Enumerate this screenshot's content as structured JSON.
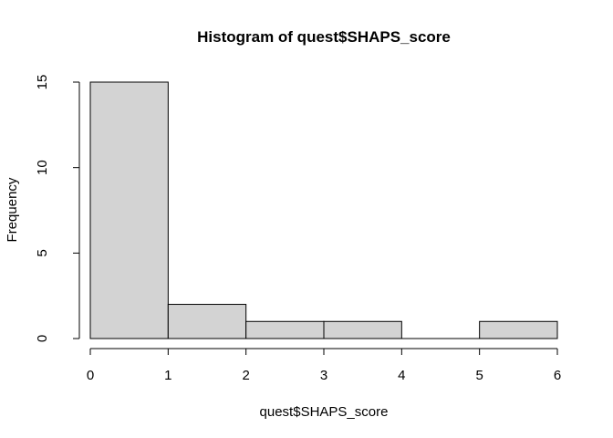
{
  "chart_data": {
    "type": "bar",
    "title": "Histogram of quest$SHAPS_score",
    "xlabel": "quest$SHAPS_score",
    "ylabel": "Frequency",
    "bins": [
      {
        "start": 0,
        "end": 1,
        "count": 15
      },
      {
        "start": 1,
        "end": 2,
        "count": 2
      },
      {
        "start": 2,
        "end": 3,
        "count": 1
      },
      {
        "start": 3,
        "end": 4,
        "count": 1
      },
      {
        "start": 4,
        "end": 5,
        "count": 0
      },
      {
        "start": 5,
        "end": 6,
        "count": 1
      }
    ],
    "xlim": [
      0,
      6
    ],
    "ylim": [
      0,
      15
    ],
    "x_ticks": [
      0,
      1,
      2,
      3,
      4,
      5,
      6
    ],
    "y_ticks": [
      0,
      5,
      10,
      15
    ],
    "bar_color": "#d3d3d3",
    "grid": false
  }
}
